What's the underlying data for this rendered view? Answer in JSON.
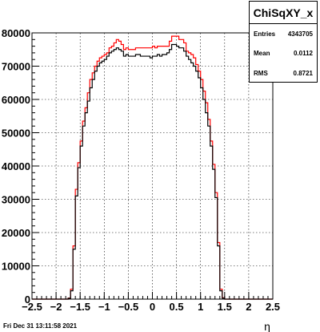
{
  "stats": {
    "title": "ChiSqXY_x",
    "rows": [
      {
        "label": "Entries",
        "value": "4343705"
      },
      {
        "label": "Mean",
        "value": "0.0112"
      },
      {
        "label": "RMS",
        "value": "0.8721"
      }
    ]
  },
  "footer": {
    "timestamp": "Fri Dec 31 13:11:58 2021"
  },
  "chart_data": {
    "type": "line",
    "title": "",
    "xlabel": "η",
    "ylabel": "",
    "xlim": [
      -2.5,
      2.5
    ],
    "ylim": [
      0,
      80000
    ],
    "x_ticks": [
      "−2.5",
      "−2",
      "−1.5",
      "−1",
      "−0.5",
      "0",
      "0.5",
      "1",
      "1.5",
      "2",
      "2.5"
    ],
    "y_ticks": [
      "0",
      "10000",
      "20000",
      "30000",
      "40000",
      "50000",
      "60000",
      "70000",
      "80000"
    ],
    "grid": true,
    "bin_width": 0.05,
    "series": [
      {
        "color": "#ff0000",
        "x": [
          -1.775,
          -1.725,
          -1.675,
          -1.625,
          -1.575,
          -1.525,
          -1.475,
          -1.425,
          -1.375,
          -1.325,
          -1.275,
          -1.225,
          -1.175,
          -1.125,
          -1.075,
          -1.025,
          -0.975,
          -0.925,
          -0.875,
          -0.825,
          -0.775,
          -0.725,
          -0.675,
          -0.625,
          -0.575,
          -0.525,
          -0.475,
          -0.425,
          -0.375,
          -0.325,
          -0.275,
          -0.225,
          -0.175,
          -0.125,
          -0.075,
          -0.025,
          0.025,
          0.075,
          0.125,
          0.175,
          0.225,
          0.275,
          0.325,
          0.375,
          0.425,
          0.475,
          0.525,
          0.575,
          0.625,
          0.675,
          0.725,
          0.775,
          0.825,
          0.875,
          0.925,
          0.975,
          1.025,
          1.075,
          1.125,
          1.175,
          1.225,
          1.275,
          1.325,
          1.375,
          1.425,
          1.475,
          1.525,
          1.575,
          1.625,
          1.675,
          1.725,
          1.775
        ],
        "y": [
          0,
          300,
          3000,
          16000,
          33000,
          41000,
          47500,
          53500,
          57500,
          62000,
          66000,
          68000,
          70000,
          71500,
          72500,
          73000,
          73500,
          74000,
          75500,
          76000,
          77000,
          78000,
          77500,
          76500,
          75000,
          75500,
          75000,
          75000,
          75000,
          75500,
          75500,
          75500,
          75500,
          75500,
          75500,
          75500,
          76000,
          75500,
          76000,
          76000,
          76000,
          76000,
          76000,
          77500,
          79000,
          79000,
          79000,
          78000,
          78000,
          77000,
          74500,
          74000,
          73500,
          72500,
          70500,
          68500,
          66000,
          62500,
          59000,
          54000,
          47500,
          40500,
          32000,
          17000,
          3000,
          400,
          0,
          0,
          0,
          0,
          0,
          0
        ]
      },
      {
        "color": "#000000",
        "x": [
          -1.775,
          -1.725,
          -1.675,
          -1.625,
          -1.575,
          -1.525,
          -1.475,
          -1.425,
          -1.375,
          -1.325,
          -1.275,
          -1.225,
          -1.175,
          -1.125,
          -1.075,
          -1.025,
          -0.975,
          -0.925,
          -0.875,
          -0.825,
          -0.775,
          -0.725,
          -0.675,
          -0.625,
          -0.575,
          -0.525,
          -0.475,
          -0.425,
          -0.375,
          -0.325,
          -0.275,
          -0.225,
          -0.175,
          -0.125,
          -0.075,
          -0.025,
          0.025,
          0.075,
          0.125,
          0.175,
          0.225,
          0.275,
          0.325,
          0.375,
          0.425,
          0.475,
          0.525,
          0.575,
          0.625,
          0.675,
          0.725,
          0.775,
          0.825,
          0.875,
          0.925,
          0.975,
          1.025,
          1.075,
          1.125,
          1.175,
          1.225,
          1.275,
          1.325,
          1.375,
          1.425,
          1.475,
          1.525,
          1.575,
          1.625,
          1.675,
          1.725,
          1.775
        ],
        "y": [
          0,
          250,
          2500,
          15000,
          31000,
          39500,
          46000,
          52000,
          56000,
          59500,
          63500,
          66000,
          68500,
          70000,
          71000,
          71500,
          72000,
          73000,
          74000,
          74500,
          75000,
          75500,
          75000,
          74500,
          73000,
          73500,
          73000,
          73000,
          73000,
          73500,
          73500,
          73000,
          73000,
          73000,
          73000,
          72500,
          73000,
          73000,
          73500,
          73000,
          73500,
          73500,
          74000,
          75000,
          76500,
          76500,
          76000,
          75500,
          75500,
          74500,
          73000,
          72000,
          71000,
          70000,
          68500,
          66500,
          63500,
          60000,
          56000,
          52000,
          46000,
          39000,
          30500,
          16000,
          2500,
          300,
          0,
          0,
          0,
          0,
          0,
          0
        ]
      }
    ]
  }
}
